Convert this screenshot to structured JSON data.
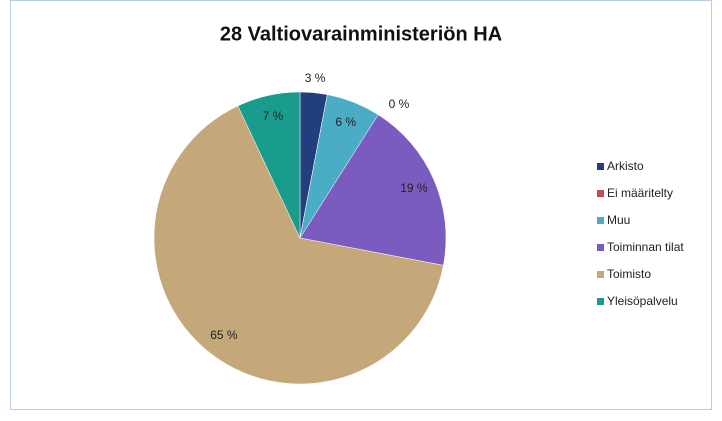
{
  "chart_data": {
    "type": "pie",
    "title": "28 Valtiovarainministeriön HA",
    "categories": [
      "Arkisto",
      "Ei määritelty",
      "Muu",
      "Toiminnan tilat",
      "Toimisto",
      "Yleisöpalvelu"
    ],
    "values": [
      3,
      0,
      6,
      19,
      65,
      7
    ],
    "value_labels": [
      "3 %",
      "0 %",
      "6 %",
      "19 %",
      "65 %",
      "7 %"
    ],
    "colors": [
      "#203f7c",
      "#c0504d",
      "#4bacc6",
      "#7a5cc0",
      "#c4a87a",
      "#1a9c8c"
    ],
    "legend": "right"
  }
}
